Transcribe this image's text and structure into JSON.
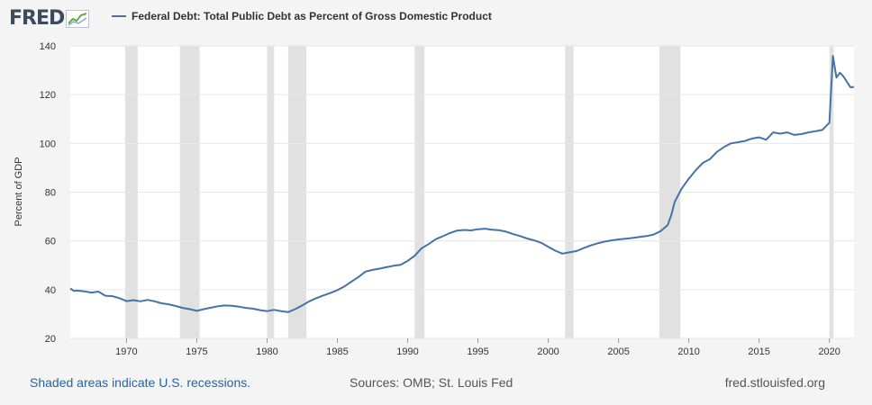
{
  "header": {
    "logo_text": "FRED",
    "legend_label": "Federal Debt: Total Public Debt as Percent of Gross Domestic Product",
    "series_color": "#4572a7"
  },
  "footer": {
    "recession_note": "Shaded areas indicate U.S. recessions.",
    "sources": "Sources: OMB; St. Louis Fed",
    "site": "fred.stlouisfed.org"
  },
  "chart_data": {
    "type": "line",
    "title": "Federal Debt: Total Public Debt as Percent of Gross Domestic Product",
    "ylabel": "Percent of GDP",
    "xlabel": "",
    "xlim": [
      1966.0,
      2021.75
    ],
    "ylim": [
      20,
      140
    ],
    "yticks": [
      "20",
      "40",
      "60",
      "80",
      "100",
      "120",
      "140"
    ],
    "xticks": [
      "1970",
      "1975",
      "1980",
      "1985",
      "1990",
      "1995",
      "2000",
      "2005",
      "2010",
      "2015",
      "2020"
    ],
    "grid": true,
    "legend": "top-left",
    "recessions": [
      [
        1969.9,
        1970.8
      ],
      [
        1973.8,
        1975.2
      ],
      [
        1980.0,
        1980.5
      ],
      [
        1981.5,
        1982.8
      ],
      [
        1990.5,
        1991.2
      ],
      [
        2001.2,
        2001.8
      ],
      [
        2007.9,
        2009.4
      ],
      [
        2020.0,
        2020.3
      ]
    ],
    "recession_color": "#e1e1e1",
    "series": [
      {
        "name": "Federal Debt: Total Public Debt as Percent of Gross Domestic Product",
        "color": "#4572a7",
        "x": [
          1966.0,
          1966.25,
          1966.5,
          1967.0,
          1967.5,
          1968.0,
          1968.5,
          1969.0,
          1969.5,
          1970.0,
          1970.5,
          1971.0,
          1971.5,
          1972.0,
          1972.5,
          1973.0,
          1973.5,
          1974.0,
          1974.5,
          1975.0,
          1975.5,
          1976.0,
          1976.5,
          1977.0,
          1977.5,
          1978.0,
          1978.5,
          1979.0,
          1979.5,
          1980.0,
          1980.5,
          1981.0,
          1981.5,
          1982.0,
          1982.5,
          1983.0,
          1983.5,
          1984.0,
          1984.5,
          1985.0,
          1985.5,
          1986.0,
          1986.5,
          1987.0,
          1987.5,
          1988.0,
          1988.5,
          1989.0,
          1989.5,
          1990.0,
          1990.5,
          1991.0,
          1991.5,
          1992.0,
          1992.5,
          1993.0,
          1993.5,
          1994.0,
          1994.5,
          1995.0,
          1995.5,
          1996.0,
          1996.5,
          1997.0,
          1997.5,
          1998.0,
          1998.5,
          1999.0,
          1999.5,
          2000.0,
          2000.5,
          2001.0,
          2001.5,
          2002.0,
          2002.5,
          2003.0,
          2003.5,
          2004.0,
          2004.5,
          2005.0,
          2005.5,
          2006.0,
          2006.5,
          2007.0,
          2007.5,
          2008.0,
          2008.5,
          2008.75,
          2009.0,
          2009.5,
          2010.0,
          2010.5,
          2011.0,
          2011.5,
          2012.0,
          2012.5,
          2013.0,
          2013.5,
          2014.0,
          2014.5,
          2015.0,
          2015.5,
          2016.0,
          2016.5,
          2017.0,
          2017.5,
          2018.0,
          2018.5,
          2019.0,
          2019.5,
          2020.0,
          2020.25,
          2020.5,
          2020.75,
          2021.0,
          2021.5,
          2021.75
        ],
        "values": [
          40.5,
          39.5,
          39.6,
          39.3,
          38.8,
          39.2,
          37.5,
          37.3,
          36.5,
          35.3,
          35.7,
          35.2,
          35.8,
          35.2,
          34.4,
          34.0,
          33.3,
          32.5,
          32.0,
          31.3,
          32.0,
          32.6,
          33.2,
          33.5,
          33.4,
          33.0,
          32.5,
          32.2,
          31.6,
          31.2,
          31.7,
          31.2,
          30.8,
          32.0,
          33.5,
          35.2,
          36.5,
          37.6,
          38.6,
          39.8,
          41.3,
          43.3,
          45.2,
          47.4,
          48.1,
          48.6,
          49.2,
          49.8,
          50.2,
          51.8,
          53.9,
          57.0,
          58.7,
          60.7,
          61.9,
          63.2,
          64.2,
          64.5,
          64.3,
          64.8,
          65.0,
          64.6,
          64.4,
          63.8,
          62.8,
          62.0,
          61.0,
          60.2,
          59.2,
          57.6,
          56.0,
          54.8,
          55.3,
          55.8,
          57.0,
          58.1,
          59.0,
          59.7,
          60.2,
          60.6,
          60.9,
          61.2,
          61.6,
          62.0,
          62.6,
          64.0,
          66.5,
          70.5,
          76.0,
          81.5,
          85.5,
          89.0,
          92.0,
          93.5,
          96.5,
          98.5,
          100.0,
          100.5,
          101.0,
          102.0,
          102.5,
          101.5,
          104.5,
          104.0,
          104.5,
          103.5,
          103.8,
          104.5,
          105.0,
          105.5,
          108.5,
          135.9,
          127.0,
          129.0,
          127.5,
          123.0,
          123.2
        ]
      }
    ]
  }
}
